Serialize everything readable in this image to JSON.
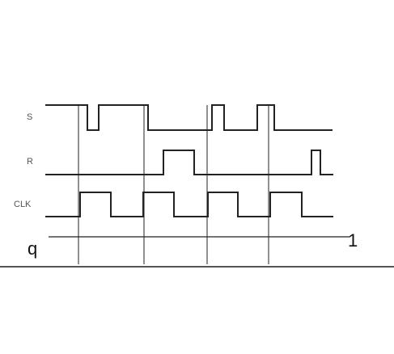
{
  "labels": {
    "s": "S",
    "r": "R",
    "clk": "CLK",
    "q": "q",
    "q_end_value": "1"
  },
  "colors": {
    "line": "#222222",
    "label": "#555555",
    "background": "#ffffff"
  }
}
